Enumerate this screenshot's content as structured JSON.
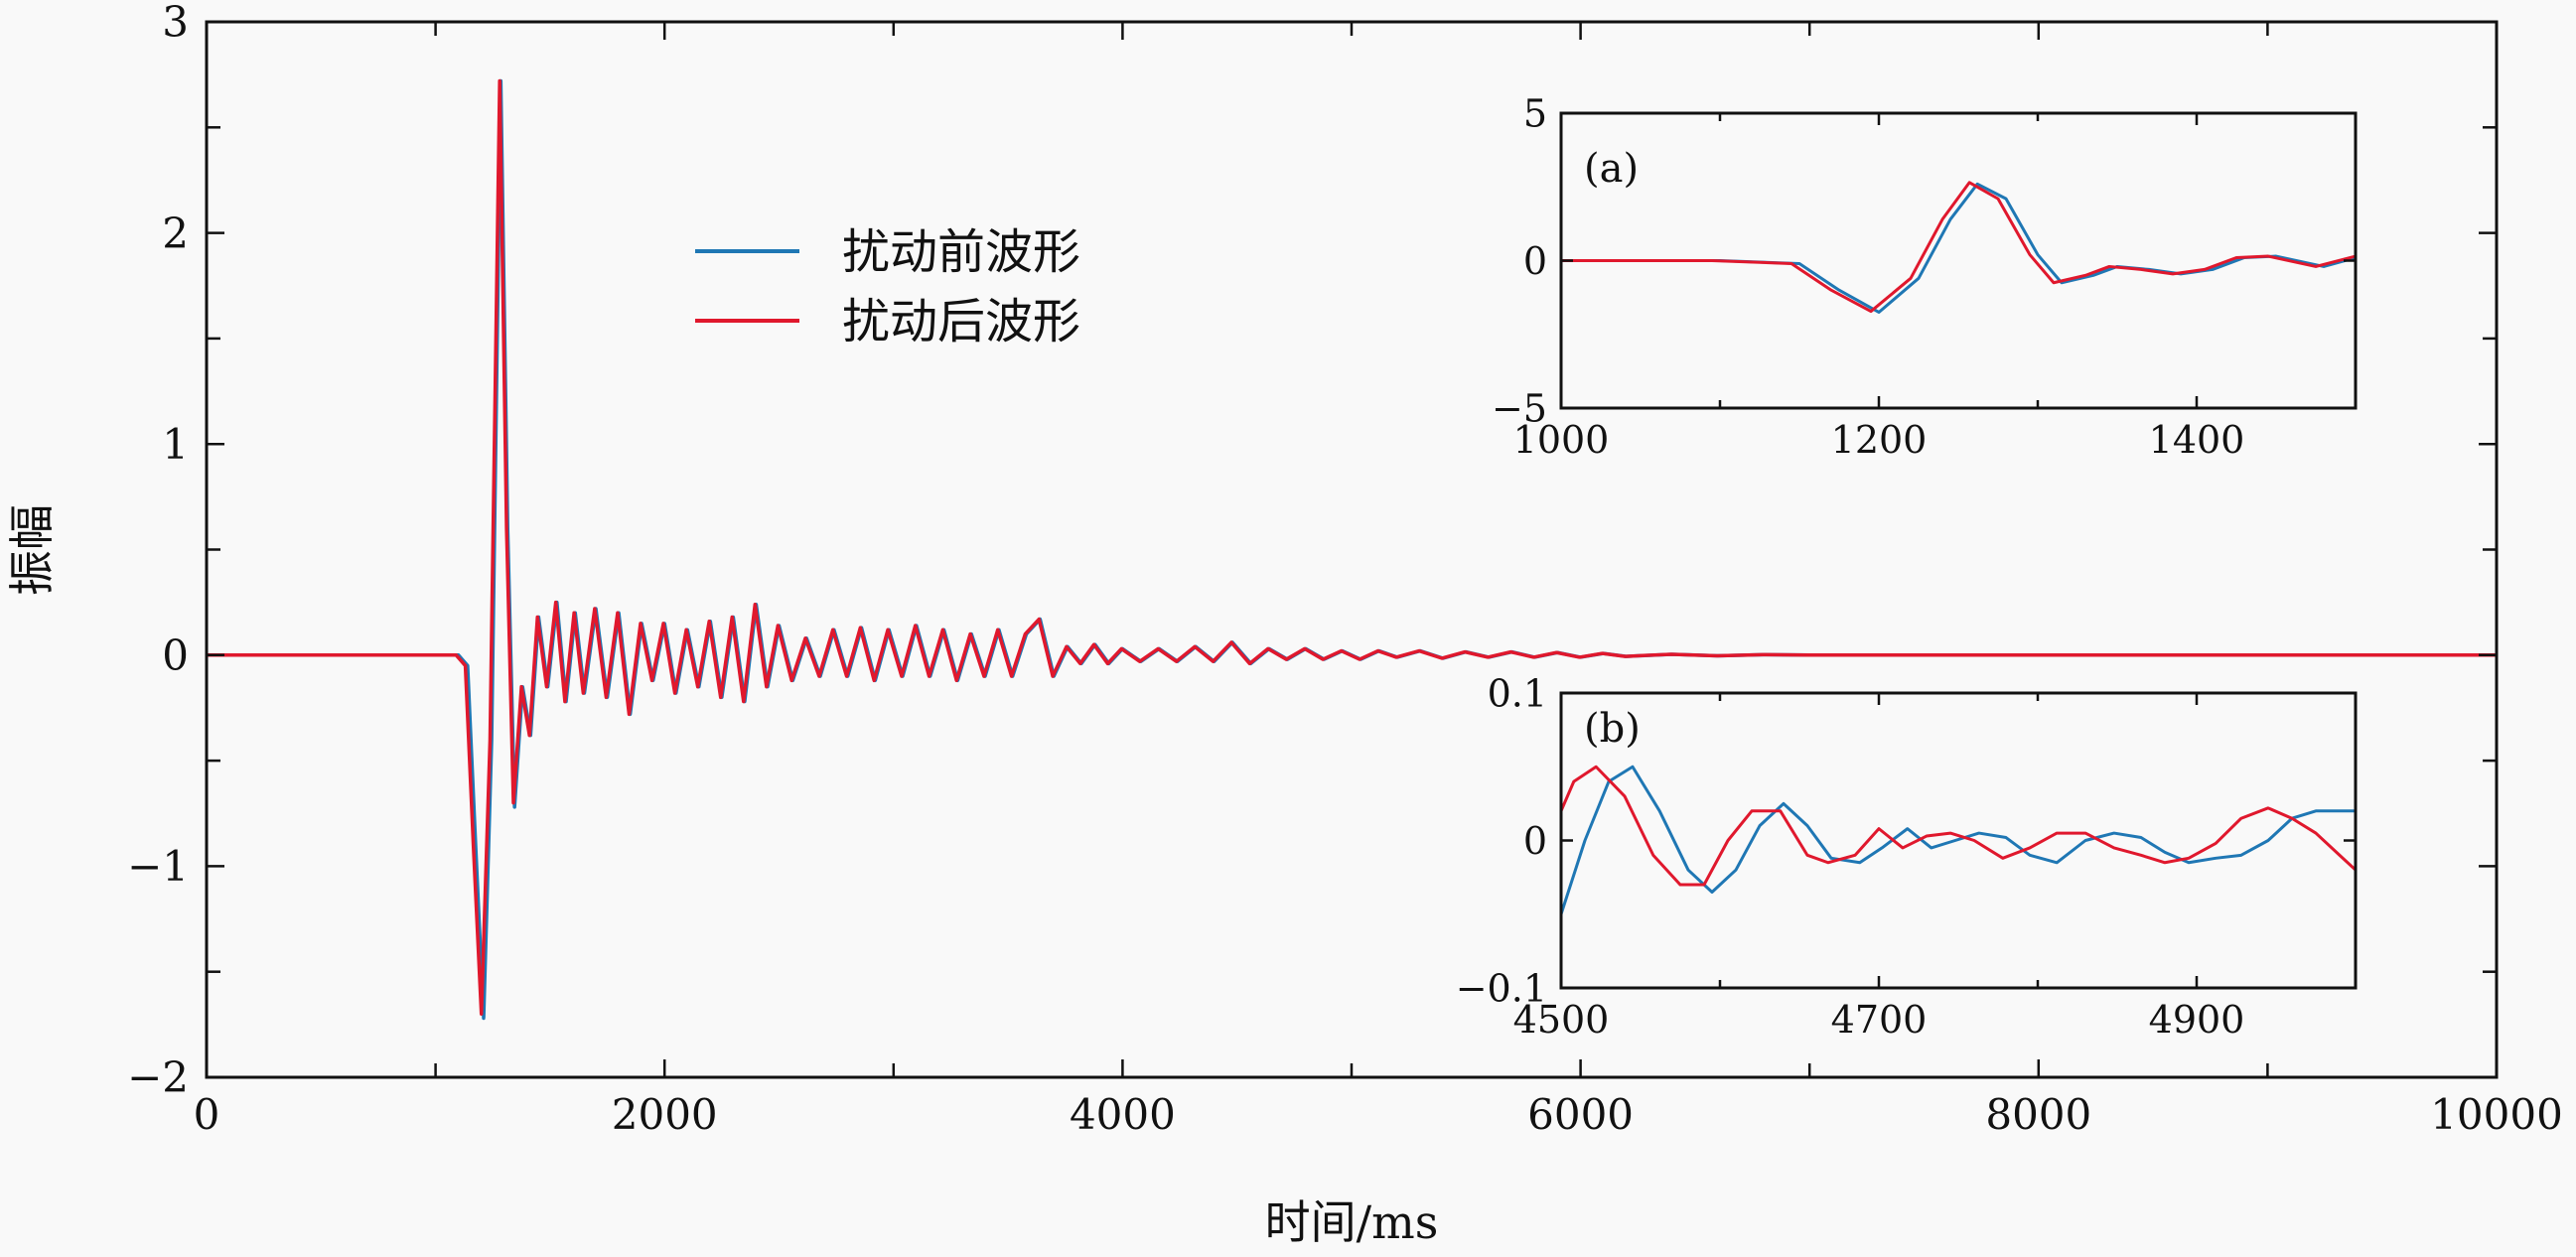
{
  "chart_data": [
    {
      "id": "main",
      "type": "line",
      "xlabel": "时间/ms",
      "ylabel": "振幅",
      "xlim": [
        0,
        10000
      ],
      "ylim": [
        -2,
        3
      ],
      "xticks": [
        0,
        2000,
        4000,
        6000,
        8000,
        10000
      ],
      "xticks_minor": [
        1000,
        3000,
        5000,
        7000,
        9000
      ],
      "yticks": [
        -2,
        -1,
        0,
        1,
        2,
        3
      ],
      "ytick_labels": [
        "−2",
        "−1",
        "0",
        "1",
        "2",
        "3"
      ],
      "legend_position": "upper-center",
      "grid": false,
      "series": [
        {
          "name": "扰动前波形",
          "color": "#1f77b4",
          "x": [
            0,
            1100,
            1140,
            1175,
            1210,
            1245,
            1285,
            1315,
            1345,
            1380,
            1415,
            1450,
            1490,
            1530,
            1570,
            1610,
            1650,
            1700,
            1750,
            1800,
            1850,
            1900,
            1950,
            2000,
            2050,
            2100,
            2150,
            2200,
            2250,
            2300,
            2350,
            2400,
            2450,
            2500,
            2560,
            2620,
            2680,
            2740,
            2800,
            2860,
            2920,
            2980,
            3040,
            3100,
            3160,
            3220,
            3280,
            3340,
            3400,
            3460,
            3520,
            3580,
            3640,
            3700,
            3760,
            3820,
            3880,
            3940,
            4000,
            4080,
            4160,
            4240,
            4320,
            4400,
            4480,
            4560,
            4640,
            4720,
            4800,
            4880,
            4960,
            5040,
            5120,
            5200,
            5300,
            5400,
            5500,
            5600,
            5700,
            5800,
            5900,
            6000,
            6100,
            6200,
            6400,
            6600,
            6800,
            7000,
            7500,
            8000,
            9000,
            10000
          ],
          "y": [
            0,
            0,
            -0.05,
            -0.9,
            -1.72,
            -0.4,
            2.72,
            0.6,
            -0.72,
            -0.15,
            -0.38,
            0.18,
            -0.15,
            0.25,
            -0.22,
            0.2,
            -0.18,
            0.22,
            -0.2,
            0.2,
            -0.28,
            0.15,
            -0.12,
            0.15,
            -0.18,
            0.12,
            -0.15,
            0.16,
            -0.2,
            0.18,
            -0.22,
            0.24,
            -0.15,
            0.14,
            -0.12,
            0.08,
            -0.1,
            0.12,
            -0.1,
            0.13,
            -0.12,
            0.12,
            -0.1,
            0.14,
            -0.1,
            0.12,
            -0.12,
            0.1,
            -0.1,
            0.12,
            -0.1,
            0.1,
            0.17,
            -0.1,
            0.04,
            -0.04,
            0.05,
            -0.04,
            0.03,
            -0.03,
            0.03,
            -0.03,
            0.04,
            -0.03,
            0.06,
            -0.04,
            0.03,
            -0.02,
            0.03,
            -0.02,
            0.02,
            -0.02,
            0.02,
            -0.01,
            0.02,
            -0.015,
            0.015,
            -0.01,
            0.015,
            -0.01,
            0.012,
            -0.01,
            0.008,
            -0.006,
            0.004,
            -0.003,
            0.002,
            0,
            0,
            0,
            0,
            0
          ]
        },
        {
          "name": "扰动后波形",
          "color": "#e0182d",
          "x": [
            0,
            1090,
            1130,
            1165,
            1200,
            1238,
            1280,
            1310,
            1340,
            1375,
            1410,
            1445,
            1485,
            1525,
            1565,
            1605,
            1645,
            1695,
            1745,
            1795,
            1845,
            1895,
            1945,
            1995,
            2045,
            2095,
            2145,
            2195,
            2245,
            2295,
            2345,
            2395,
            2445,
            2495,
            2555,
            2615,
            2675,
            2735,
            2795,
            2855,
            2915,
            2975,
            3035,
            3095,
            3155,
            3215,
            3275,
            3335,
            3395,
            3455,
            3515,
            3575,
            3635,
            3695,
            3755,
            3815,
            3875,
            3935,
            3995,
            4075,
            4155,
            4235,
            4315,
            4395,
            4475,
            4555,
            4635,
            4715,
            4795,
            4875,
            4955,
            5035,
            5115,
            5195,
            5295,
            5395,
            5495,
            5595,
            5695,
            5795,
            5895,
            5995,
            6095,
            6195,
            6395,
            6595,
            6795,
            6995,
            7495,
            7995,
            8995,
            10000
          ],
          "y": [
            0,
            0,
            -0.05,
            -0.9,
            -1.7,
            -0.4,
            2.72,
            0.6,
            -0.7,
            -0.15,
            -0.38,
            0.18,
            -0.15,
            0.25,
            -0.22,
            0.2,
            -0.18,
            0.22,
            -0.2,
            0.2,
            -0.28,
            0.15,
            -0.12,
            0.15,
            -0.18,
            0.12,
            -0.15,
            0.16,
            -0.2,
            0.18,
            -0.22,
            0.24,
            -0.15,
            0.14,
            -0.12,
            0.08,
            -0.1,
            0.12,
            -0.1,
            0.13,
            -0.12,
            0.12,
            -0.1,
            0.14,
            -0.1,
            0.12,
            -0.12,
            0.1,
            -0.1,
            0.12,
            -0.1,
            0.1,
            0.17,
            -0.1,
            0.04,
            -0.04,
            0.05,
            -0.04,
            0.03,
            -0.03,
            0.03,
            -0.03,
            0.04,
            -0.03,
            0.06,
            -0.04,
            0.03,
            -0.02,
            0.03,
            -0.02,
            0.02,
            -0.02,
            0.02,
            -0.01,
            0.02,
            -0.015,
            0.015,
            -0.01,
            0.015,
            -0.01,
            0.012,
            -0.01,
            0.008,
            -0.006,
            0.004,
            -0.003,
            0.002,
            0,
            0,
            0,
            0,
            0
          ]
        }
      ]
    },
    {
      "id": "inset-a",
      "type": "line",
      "annotation": "(a)",
      "xlim": [
        1000,
        1500
      ],
      "ylim": [
        -5,
        5
      ],
      "xticks": [
        1000,
        1200,
        1400
      ],
      "xticks_minor": [
        1100,
        1300,
        1500
      ],
      "yticks": [
        -5,
        0,
        5
      ],
      "ytick_labels": [
        "−5",
        "0",
        "5"
      ],
      "series": [
        {
          "name": "扰动前波形",
          "color": "#1f77b4",
          "x": [
            1000,
            1100,
            1150,
            1175,
            1200,
            1225,
            1245,
            1262,
            1280,
            1300,
            1315,
            1335,
            1350,
            1370,
            1390,
            1410,
            1430,
            1450,
            1480,
            1500
          ],
          "y": [
            0,
            0,
            -0.1,
            -1.0,
            -1.75,
            -0.6,
            1.4,
            2.6,
            2.1,
            0.2,
            -0.75,
            -0.5,
            -0.2,
            -0.3,
            -0.45,
            -0.3,
            0.1,
            0.15,
            -0.2,
            0.1
          ]
        },
        {
          "name": "扰动后波形",
          "color": "#e0182d",
          "x": [
            1000,
            1095,
            1145,
            1170,
            1195,
            1220,
            1240,
            1257,
            1275,
            1295,
            1310,
            1330,
            1345,
            1365,
            1385,
            1405,
            1425,
            1445,
            1475,
            1500
          ],
          "y": [
            0,
            0,
            -0.1,
            -1.0,
            -1.72,
            -0.6,
            1.4,
            2.65,
            2.1,
            0.2,
            -0.75,
            -0.5,
            -0.2,
            -0.3,
            -0.45,
            -0.3,
            0.1,
            0.15,
            -0.2,
            0.15
          ]
        }
      ]
    },
    {
      "id": "inset-b",
      "type": "line",
      "annotation": "(b)",
      "xlim": [
        4500,
        5000
      ],
      "ylim": [
        -0.1,
        0.1
      ],
      "xticks": [
        4500,
        4700,
        4900
      ],
      "xticks_minor": [
        4600,
        4800,
        5000
      ],
      "yticks": [
        -0.1,
        0,
        0.1
      ],
      "ytick_labels": [
        "−0.1",
        "0",
        "0.1"
      ],
      "series": [
        {
          "name": "扰动前波形",
          "color": "#1f77b4",
          "x": [
            4500,
            4515,
            4530,
            4545,
            4562,
            4580,
            4595,
            4610,
            4625,
            4640,
            4655,
            4670,
            4688,
            4702,
            4718,
            4733,
            4748,
            4763,
            4780,
            4795,
            4812,
            4830,
            4848,
            4865,
            4880,
            4895,
            4912,
            4928,
            4945,
            4960,
            4975,
            4990,
            5000
          ],
          "y": [
            -0.05,
            0.0,
            0.04,
            0.05,
            0.02,
            -0.02,
            -0.035,
            -0.02,
            0.01,
            0.025,
            0.01,
            -0.012,
            -0.015,
            -0.005,
            0.008,
            -0.005,
            0.0,
            0.005,
            0.002,
            -0.01,
            -0.015,
            0.0,
            0.005,
            0.002,
            -0.008,
            -0.015,
            -0.012,
            -0.01,
            0.0,
            0.015,
            0.02,
            0.02,
            0.02
          ]
        },
        {
          "name": "扰动后波形",
          "color": "#e0182d",
          "x": [
            4500,
            4508,
            4522,
            4540,
            4558,
            4575,
            4590,
            4605,
            4620,
            4638,
            4655,
            4668,
            4685,
            4700,
            4715,
            4730,
            4745,
            4760,
            4778,
            4795,
            4812,
            4830,
            4848,
            4865,
            4880,
            4895,
            4912,
            4928,
            4945,
            4960,
            4975,
            4990,
            5000
          ],
          "y": [
            0.02,
            0.04,
            0.05,
            0.03,
            -0.01,
            -0.03,
            -0.03,
            0.0,
            0.02,
            0.02,
            -0.01,
            -0.015,
            -0.01,
            0.008,
            -0.005,
            0.003,
            0.005,
            0.0,
            -0.012,
            -0.005,
            0.005,
            0.005,
            -0.005,
            -0.01,
            -0.015,
            -0.012,
            -0.002,
            0.015,
            0.022,
            0.015,
            0.005,
            -0.01,
            -0.02
          ]
        }
      ]
    }
  ]
}
